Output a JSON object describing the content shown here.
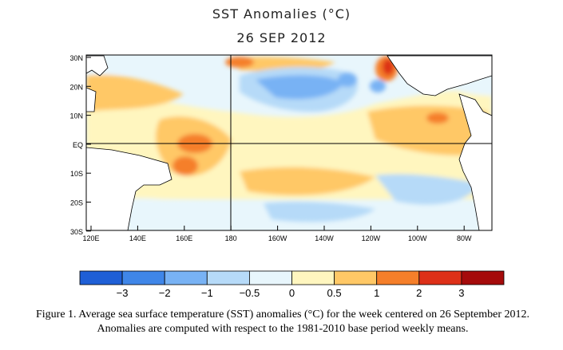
{
  "header": {
    "title": "SST Anomalies (°C)",
    "date": "26 SEP 2012"
  },
  "map": {
    "lat_labels": [
      "30N",
      "20N",
      "10N",
      "EQ",
      "10S",
      "20S",
      "30S"
    ],
    "lon_labels": [
      "120E",
      "140E",
      "160E",
      "180",
      "160W",
      "140W",
      "120W",
      "100W",
      "80W"
    ],
    "reference_lines": [
      "EQ",
      "180"
    ]
  },
  "colorbar": {
    "labels": [
      "−3",
      "−2",
      "−1",
      "−0.5",
      "0",
      "0.5",
      "1",
      "2",
      "3"
    ],
    "colors": [
      "#1f5fd6",
      "#3f86e8",
      "#78b2f4",
      "#b6daf8",
      "#e8f6fc",
      "#fff6bf",
      "#ffc866",
      "#f57f2a",
      "#dd3018",
      "#a50b0b"
    ]
  },
  "caption": {
    "text": "Figure 1. Average sea surface temperature (SST) anomalies (°C) for the week centered on 26 September 2012.   Anomalies are computed with respect to the 1981-2010 base period weekly means."
  }
}
